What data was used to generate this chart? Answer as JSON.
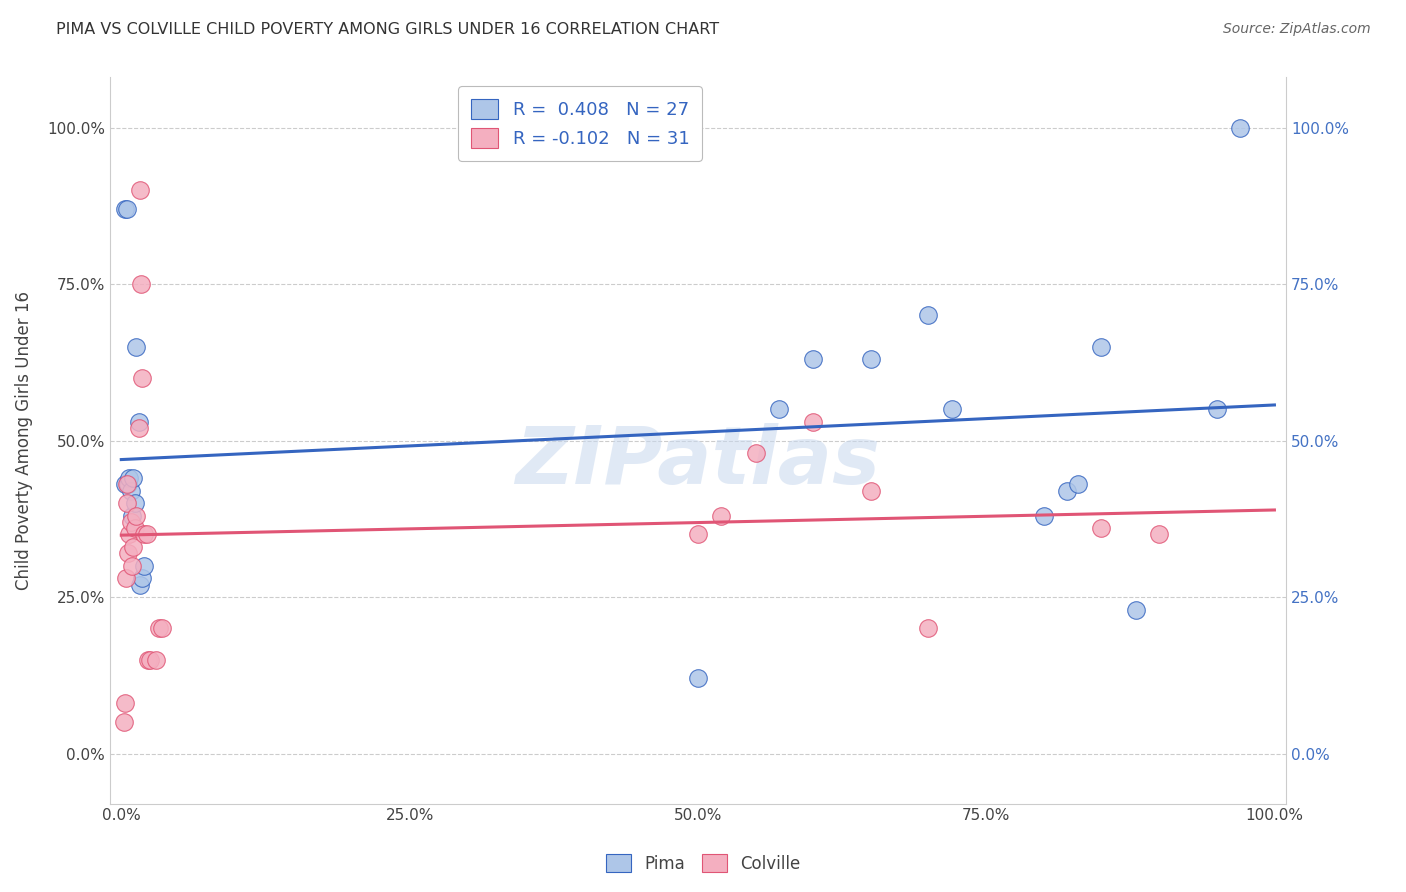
{
  "title": "PIMA VS COLVILLE CHILD POVERTY AMONG GIRLS UNDER 16 CORRELATION CHART",
  "source": "Source: ZipAtlas.com",
  "ylabel": "Child Poverty Among Girls Under 16",
  "pima_R": 0.408,
  "pima_N": 27,
  "colville_R": -0.102,
  "colville_N": 31,
  "pima_color": "#aec6e8",
  "colville_color": "#f4afc0",
  "pima_line_color": "#3565c0",
  "colville_line_color": "#e05575",
  "watermark": "ZIPatlas",
  "pima_x": [
    0.003,
    0.003,
    0.005,
    0.006,
    0.007,
    0.008,
    0.009,
    0.01,
    0.012,
    0.013,
    0.015,
    0.016,
    0.018,
    0.02,
    0.5,
    0.57,
    0.6,
    0.65,
    0.7,
    0.72,
    0.8,
    0.82,
    0.83,
    0.85,
    0.88,
    0.95,
    0.97
  ],
  "pima_y": [
    0.43,
    0.87,
    0.87,
    0.43,
    0.44,
    0.42,
    0.38,
    0.44,
    0.4,
    0.65,
    0.53,
    0.27,
    0.28,
    0.3,
    0.12,
    0.55,
    0.63,
    0.63,
    0.7,
    0.55,
    0.38,
    0.42,
    0.43,
    0.65,
    0.23,
    0.55,
    1.0
  ],
  "colville_x": [
    0.002,
    0.003,
    0.004,
    0.005,
    0.005,
    0.006,
    0.007,
    0.008,
    0.009,
    0.01,
    0.012,
    0.013,
    0.015,
    0.016,
    0.017,
    0.018,
    0.02,
    0.022,
    0.023,
    0.025,
    0.03,
    0.033,
    0.035,
    0.5,
    0.52,
    0.55,
    0.6,
    0.65,
    0.7,
    0.85,
    0.9
  ],
  "colville_y": [
    0.05,
    0.08,
    0.28,
    0.4,
    0.43,
    0.32,
    0.35,
    0.37,
    0.3,
    0.33,
    0.36,
    0.38,
    0.52,
    0.9,
    0.75,
    0.6,
    0.35,
    0.35,
    0.15,
    0.15,
    0.15,
    0.2,
    0.2,
    0.35,
    0.38,
    0.48,
    0.53,
    0.42,
    0.2,
    0.36,
    0.35
  ],
  "xlim": [
    0.0,
    1.0
  ],
  "ylim": [
    -0.05,
    1.05
  ],
  "background_color": "#ffffff",
  "grid_color": "#cccccc",
  "right_tick_color": "#4472c4"
}
